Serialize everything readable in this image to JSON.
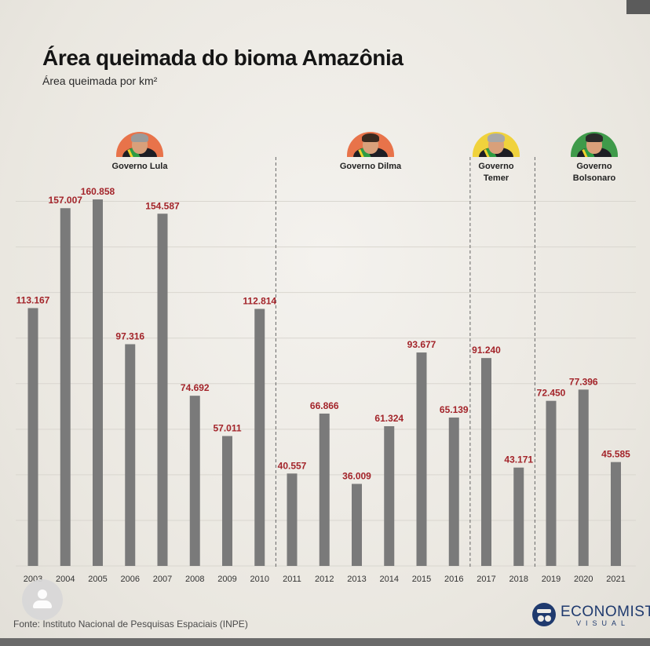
{
  "header": {
    "title": "Área queimada do bioma Amazônia",
    "subtitle": "Área queimada por km²"
  },
  "governments": [
    {
      "label": "Governo Lula",
      "halo_color": "#e8734a",
      "hair_color": "#9a9a9a"
    },
    {
      "label": "Governo Dilma",
      "halo_color": "#e8734a",
      "hair_color": "#3a2a20"
    },
    {
      "label": "Governo\nTemer",
      "halo_color": "#f0d23c",
      "hair_color": "#a8a8a8"
    },
    {
      "label": "Governo Bolsonaro",
      "halo_color": "#3f9a4a",
      "hair_color": "#2a2a2a"
    }
  ],
  "chart_data": {
    "type": "bar",
    "categories": [
      "2003",
      "2004",
      "2005",
      "2006",
      "2007",
      "2008",
      "2009",
      "2010",
      "2011",
      "2012",
      "2013",
      "2014",
      "2015",
      "2016",
      "2017",
      "2018",
      "2019",
      "2020",
      "2021"
    ],
    "values": [
      113167,
      157007,
      160858,
      97316,
      154587,
      74692,
      57011,
      112814,
      40557,
      66866,
      36009,
      61324,
      93677,
      65139,
      91240,
      43171,
      72450,
      77396,
      45585
    ],
    "value_labels": [
      "113.167",
      "157.007",
      "160.858",
      "97.316",
      "154.587",
      "74.692",
      "57.011",
      "112.814",
      "40.557",
      "66.866",
      "36.009",
      "61.324",
      "93.677",
      "65.139",
      "91.240",
      "43.171",
      "72.450",
      "77.396",
      "45.585"
    ],
    "ylim": [
      0,
      175000
    ],
    "grid": true,
    "colors": {
      "bar": "#7a7a7a",
      "value_label": "#a3242a",
      "divider": "#666666"
    },
    "government_periods": [
      {
        "government": "Governo Lula",
        "years": [
          "2003",
          "2010"
        ]
      },
      {
        "government": "Governo Dilma",
        "years": [
          "2011",
          "2016"
        ]
      },
      {
        "government": "Governo\nTemer",
        "years": [
          "2016",
          "2018"
        ]
      },
      {
        "government": "Governo Bolsonaro",
        "years": [
          "2019",
          "2021"
        ]
      }
    ]
  },
  "footer": {
    "source": "Fonte: Instituto Nacional de Pesquisas Espaciais (INPE)",
    "brand_name": "ECONOMISTA",
    "brand_sub": "VISUAL"
  },
  "icons": [
    "user-avatar-icon",
    "economista-visual-logo-icon"
  ]
}
